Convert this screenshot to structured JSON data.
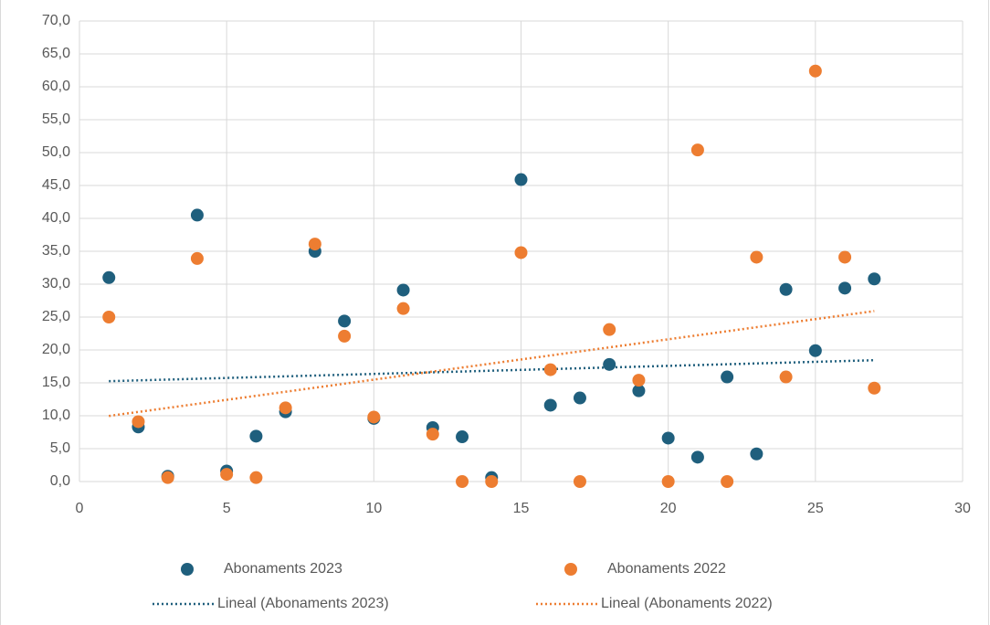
{
  "chart_data": {
    "type": "scatter",
    "x": [
      1,
      2,
      3,
      4,
      5,
      6,
      7,
      8,
      9,
      10,
      11,
      12,
      13,
      14,
      15,
      16,
      17,
      18,
      19,
      20,
      21,
      22,
      23,
      24,
      25,
      26,
      27
    ],
    "series": [
      {
        "name": "Abonaments 2023",
        "color": "#1f5f7d",
        "values": [
          31.0,
          8.3,
          0.8,
          40.5,
          1.6,
          6.9,
          10.6,
          35.0,
          24.4,
          9.6,
          29.1,
          8.2,
          6.8,
          0.6,
          45.9,
          11.6,
          12.7,
          17.8,
          13.8,
          6.6,
          3.7,
          15.9,
          4.2,
          29.2,
          19.9,
          29.4,
          30.8
        ],
        "trendline": "Lineal (Abonaments 2023)"
      },
      {
        "name": "Abonaments 2022",
        "color": "#ed7d31",
        "values": [
          25.0,
          9.1,
          0.6,
          33.9,
          1.1,
          0.6,
          11.2,
          36.1,
          22.1,
          9.8,
          26.3,
          7.2,
          0.0,
          0.0,
          34.8,
          17.0,
          0.0,
          23.1,
          15.4,
          0.0,
          50.4,
          0.0,
          34.1,
          15.9,
          62.4,
          34.1,
          14.2
        ],
        "trendline": "Lineal (Abonaments 2022)"
      }
    ],
    "xlim": [
      0,
      30
    ],
    "xticks": [
      0,
      5,
      10,
      15,
      20,
      25,
      30
    ],
    "ylim": [
      0,
      70
    ],
    "yticks": [
      {
        "value": 0,
        "label": "0,0"
      },
      {
        "value": 5,
        "label": "5,0"
      },
      {
        "value": 10,
        "label": "10,0"
      },
      {
        "value": 15,
        "label": "15,0"
      },
      {
        "value": 20,
        "label": "20,0"
      },
      {
        "value": 25,
        "label": "25,0"
      },
      {
        "value": 30,
        "label": "30,0"
      },
      {
        "value": 35,
        "label": "35,0"
      },
      {
        "value": 40,
        "label": "40,0"
      },
      {
        "value": 45,
        "label": "45,0"
      },
      {
        "value": 50,
        "label": "50,0"
      },
      {
        "value": 55,
        "label": "55,0"
      },
      {
        "value": 60,
        "label": "60,0"
      },
      {
        "value": 65,
        "label": "65,0"
      },
      {
        "value": 70,
        "label": "70,0"
      }
    ],
    "grid": true,
    "legend": "bottom"
  }
}
